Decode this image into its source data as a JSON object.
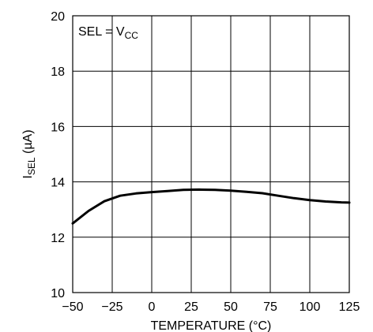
{
  "chart_data": {
    "type": "line",
    "xlabel": "TEMPERATURE (°C)",
    "ylabel": {
      "main": "I",
      "sub": "SEL",
      "unit": " (µA)"
    },
    "annotation": {
      "main": "SEL = V",
      "sub": "CC"
    },
    "xlim": [
      -50,
      125
    ],
    "ylim": [
      10,
      20
    ],
    "x_ticks": [
      "−50",
      "−25",
      "0",
      "25",
      "50",
      "75",
      "100",
      "125"
    ],
    "x_tick_values": [
      -50,
      -25,
      0,
      25,
      50,
      75,
      100,
      125
    ],
    "y_ticks": [
      "10",
      "12",
      "14",
      "16",
      "18",
      "20"
    ],
    "y_tick_values": [
      10,
      12,
      14,
      16,
      18,
      20
    ],
    "grid": true,
    "series": [
      {
        "x": [
          -50,
          -40,
          -30,
          -20,
          -10,
          0,
          10,
          20,
          30,
          40,
          50,
          60,
          70,
          80,
          90,
          100,
          110,
          120,
          125
        ],
        "y": [
          12.5,
          12.95,
          13.3,
          13.5,
          13.58,
          13.63,
          13.67,
          13.71,
          13.72,
          13.71,
          13.68,
          13.64,
          13.59,
          13.5,
          13.41,
          13.34,
          13.29,
          13.26,
          13.25
        ]
      }
    ]
  }
}
